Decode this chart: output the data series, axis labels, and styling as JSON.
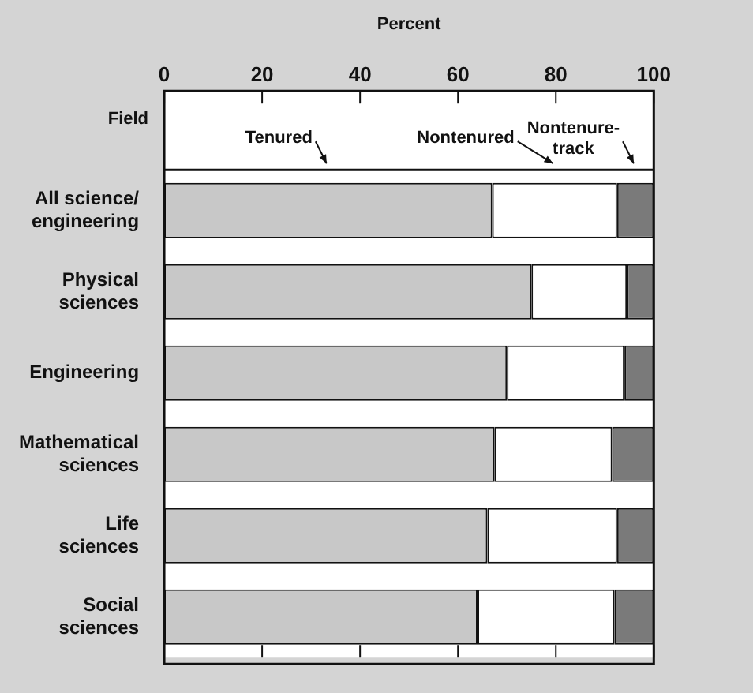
{
  "chart_data": {
    "type": "bar",
    "orientation": "horizontal",
    "stacked": true,
    "xlabel": "Percent",
    "ylabel": "Field",
    "categories": [
      "All science/engineering",
      "Physical sciences",
      "Engineering",
      "Mathematical sciences",
      "Life sciences",
      "Social sciences"
    ],
    "series": [
      {
        "name": "Tenured",
        "color": "#c8c8c8",
        "values": [
          67,
          75,
          70,
          67.5,
          66,
          64
        ]
      },
      {
        "name": "Nontenured",
        "color": "#ffffff",
        "values": [
          25.5,
          19.5,
          24,
          24,
          26.5,
          28
        ]
      },
      {
        "name": "Nontenure-track",
        "color": "#7a7a7a",
        "values": [
          7.5,
          5.5,
          6,
          8.5,
          7.5,
          8
        ]
      }
    ],
    "xlim": [
      0,
      100
    ],
    "xticks": [
      0,
      20,
      40,
      60,
      80,
      100
    ],
    "grid": false,
    "legend": false
  }
}
